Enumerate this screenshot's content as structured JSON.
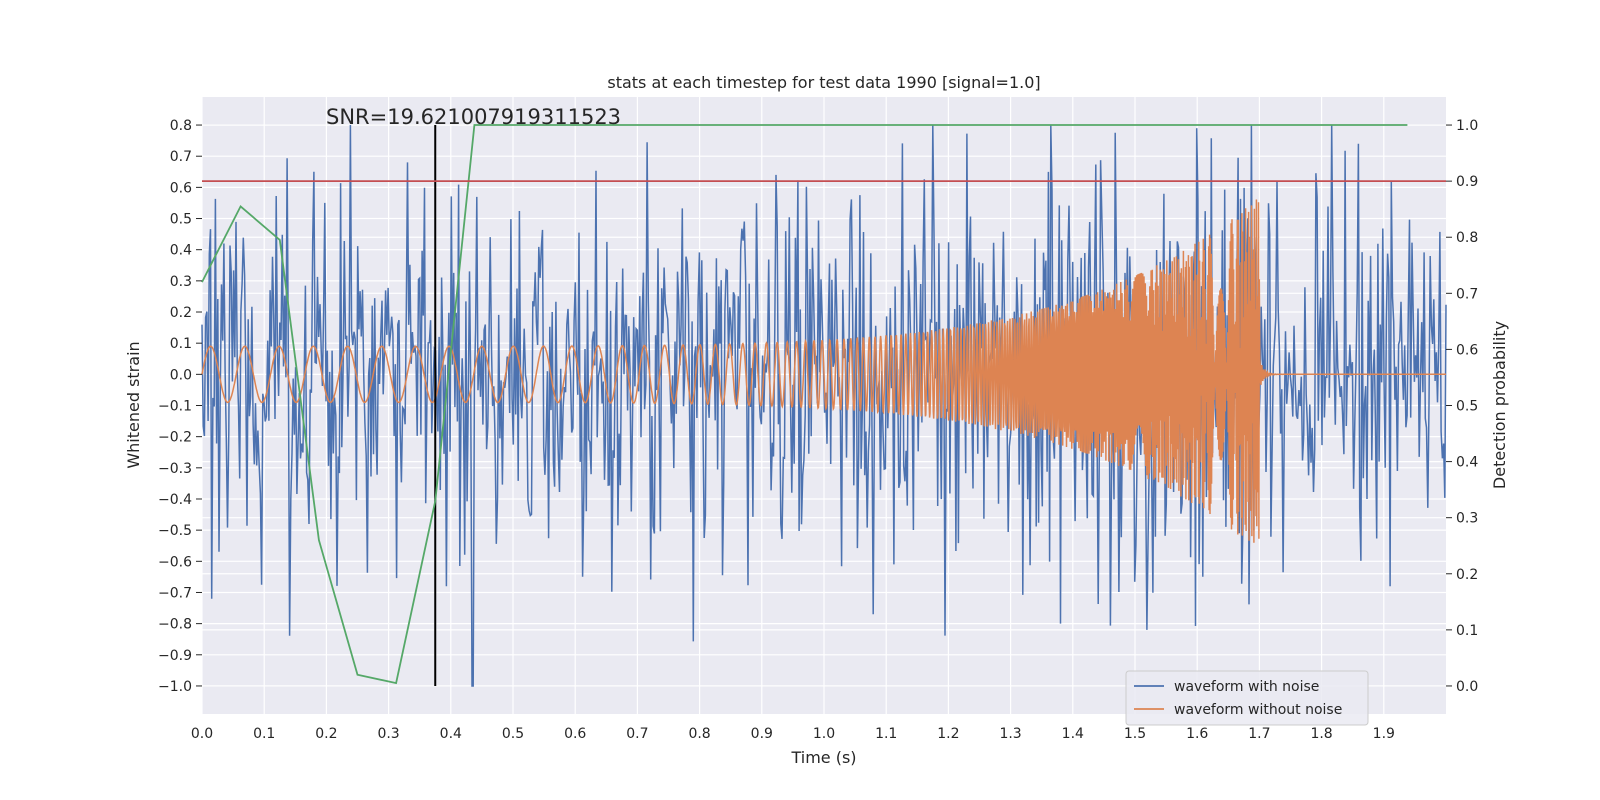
{
  "chart_data": {
    "type": "line",
    "title": "stats at each timestep for test data 1990 [signal=1.0]",
    "xlabel": "Time (s)",
    "ylabel": "Whitened strain",
    "y2label": "Detection probability",
    "annotation": "SNR=19.621007919311523",
    "xlim": [
      0.0,
      2.0
    ],
    "ylim": [
      -1.09,
      0.89
    ],
    "y2lim": [
      -0.05,
      1.05
    ],
    "xticks": [
      0.0,
      0.1,
      0.2,
      0.3,
      0.4,
      0.5,
      0.6,
      0.7,
      0.8,
      0.9,
      1.0,
      1.1,
      1.2,
      1.3,
      1.4,
      1.5,
      1.6,
      1.7,
      1.8,
      1.9
    ],
    "xtick_labels": [
      "0.0",
      "0.1",
      "0.2",
      "0.3",
      "0.4",
      "0.5",
      "0.6",
      "0.7",
      "0.8",
      "0.9",
      "1.0",
      "1.1",
      "1.2",
      "1.3",
      "1.4",
      "1.5",
      "1.6",
      "1.7",
      "1.8",
      "1.9"
    ],
    "yticks": [
      0.8,
      0.7,
      0.6,
      0.5,
      0.4,
      0.3,
      0.2,
      0.1,
      0.0,
      -0.1,
      -0.2,
      -0.3,
      -0.4,
      -0.5,
      -0.6,
      -0.7,
      -0.8,
      -0.9,
      -1.0
    ],
    "ytick_labels": [
      "0.8",
      "0.7",
      "0.6",
      "0.5",
      "0.4",
      "0.3",
      "0.2",
      "0.1",
      "0.0",
      "−0.1",
      "−0.2",
      "−0.3",
      "−0.4",
      "−0.5",
      "−0.6",
      "−0.7",
      "−0.8",
      "−0.9",
      "−1.0"
    ],
    "y2ticks": [
      1.0,
      0.9,
      0.8,
      0.7,
      0.6,
      0.5,
      0.4,
      0.3,
      0.2,
      0.1,
      0.0
    ],
    "y2tick_labels": [
      "1.0",
      "0.9",
      "0.8",
      "0.7",
      "0.6",
      "0.5",
      "0.4",
      "0.3",
      "0.2",
      "0.1",
      "0.0"
    ],
    "threshold": 0.9,
    "merger_time": 1.7,
    "snr_marker_x": 0.375,
    "noisy_waveform": {
      "name": "waveform with noise",
      "color": "#4c72b0",
      "samples": 1024,
      "seed": 1990,
      "std": 0.28,
      "peaks": [
        {
          "t": 0.18,
          "v": 0.65
        },
        {
          "t": 0.33,
          "v": 0.68
        },
        {
          "t": 1.175,
          "v": 0.8
        },
        {
          "t": 1.365,
          "v": 0.8
        },
        {
          "t": 1.6,
          "v": 0.79
        },
        {
          "t": 1.86,
          "v": 0.74
        },
        {
          "t": 0.435,
          "v": -1.0
        },
        {
          "t": 1.52,
          "v": -0.82
        },
        {
          "t": 1.38,
          "v": -0.8
        },
        {
          "t": 1.08,
          "v": -0.77
        },
        {
          "t": 0.015,
          "v": -0.72
        },
        {
          "t": 1.91,
          "v": -0.68
        }
      ]
    },
    "clean_waveform": {
      "name": "waveform without noise",
      "color": "#dd8452",
      "amp_start": 0.09,
      "amp_end": 0.57,
      "freq_start": 33,
      "freq_end": 300
    },
    "detection_probability": {
      "color": "#55a868",
      "x": [
        0.0,
        0.062,
        0.125,
        0.188,
        0.25,
        0.312,
        0.375,
        0.438,
        0.5,
        0.562,
        0.625,
        0.688,
        0.75,
        0.812,
        0.875,
        0.938,
        1.0,
        1.062,
        1.125,
        1.188,
        1.25,
        1.312,
        1.375,
        1.438,
        1.5,
        1.562,
        1.625,
        1.688,
        1.75,
        1.812,
        1.875,
        1.938
      ],
      "y": [
        0.72,
        0.855,
        0.795,
        0.26,
        0.02,
        0.005,
        0.33,
        1.0,
        1.0,
        1.0,
        1.0,
        1.0,
        1.0,
        1.0,
        1.0,
        1.0,
        1.0,
        1.0,
        1.0,
        1.0,
        1.0,
        1.0,
        1.0,
        1.0,
        1.0,
        1.0,
        1.0,
        1.0,
        1.0,
        1.0,
        1.0,
        1.0
      ]
    },
    "threshold_color": "#c44e52",
    "legend": [
      {
        "label": "waveform with noise",
        "color": "#4c72b0"
      },
      {
        "label": "waveform without noise",
        "color": "#dd8452"
      }
    ],
    "legend_position": "lower-right"
  }
}
